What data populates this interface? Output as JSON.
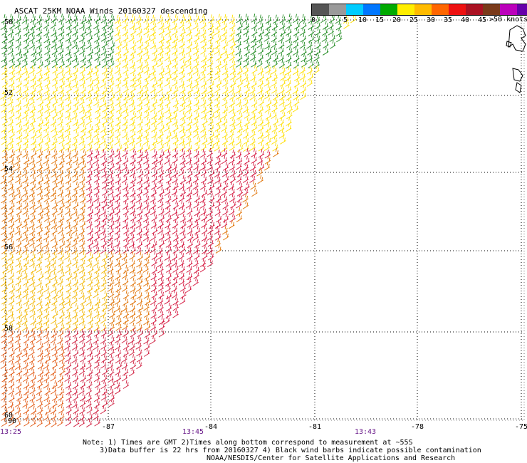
{
  "title": "ASCAT 25KM NOAA Winds 20160327 descending",
  "legend": {
    "units": ">50 knots",
    "tick_labels": [
      "0",
      "5",
      "10",
      "15",
      "20",
      "25",
      "30",
      "35",
      "40",
      "45"
    ],
    "colors": [
      "#555555",
      "#9a9a9a",
      "#00ccff",
      "#0077ff",
      "#00aa00",
      "#ffee00",
      "#ffbb00",
      "#ff6600",
      "#ee1111",
      "#aa1122",
      "#7a3a1a",
      "#bb00bb",
      "#6600aa"
    ]
  },
  "latitude_labels": [
    "50",
    "52",
    "54",
    "56",
    "58",
    "60"
  ],
  "longitude_labels": [
    "-87",
    "-84",
    "-81",
    "-78",
    "-75"
  ],
  "corner_lon_label": "-90",
  "time_labels": [
    "13:25",
    "13:45",
    "13:43"
  ],
  "notes": {
    "line1": "Note: 1) Times are GMT 2)Times along bottom correspond to measurement at ~55S",
    "line2": "3)Data buffer is 22 hrs from 20160327 4) Black wind barbs indicate possible contamination",
    "line3": "NOAA/NESDIS/Center for Satellite Applications and Research"
  },
  "wind_field": {
    "speed_units": "knots",
    "pass": "descending",
    "zones": [
      {
        "region": "north edge near 50",
        "speed_knots": 18,
        "color": "#1f8a1f"
      },
      {
        "region": "51-54",
        "speed_knots": 24,
        "color": "#ffdf00"
      },
      {
        "region": "54-56 east of swath center",
        "speed_knots": 36,
        "color": "#d4143c"
      },
      {
        "region": "54-57 west",
        "speed_knots": 30,
        "color": "#e07000"
      },
      {
        "region": "56-58 west",
        "speed_knots": 26,
        "color": "#f2b600"
      },
      {
        "region": "58-60 southeast",
        "speed_knots": 38,
        "color": "#d02040"
      },
      {
        "region": "58-60 southwest",
        "speed_knots": 32,
        "color": "#e25a14"
      }
    ]
  }
}
